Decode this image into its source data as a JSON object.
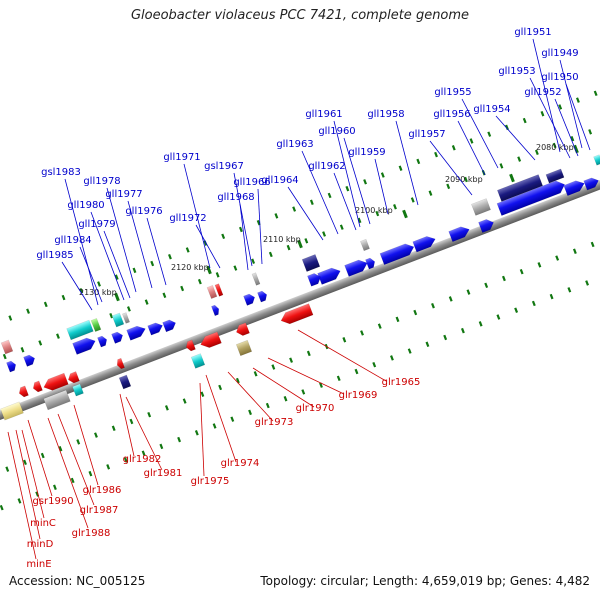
{
  "title": "Gloeobacter violaceus PCC 7421, complete genome",
  "accession": "Accession: NC_005125",
  "summary": "Topology: circular; Length: 4,659,019 bp; Genes: 4,482",
  "colors": {
    "forward_label": "#0000cc",
    "reverse_label": "#cc0000",
    "backbone": "#888888",
    "tick": "#117711"
  },
  "scale_labels": [
    "2080 kbp",
    "2090 kbp",
    "2100 kbp",
    "2110 kbp",
    "2120 kbp",
    "2130 kbp"
  ],
  "forward_genes": [
    "gll1949",
    "gll1950",
    "gll1951",
    "gll1952",
    "gll1953",
    "gll1954",
    "gll1955",
    "gll1956",
    "gll1957",
    "gll1958",
    "gll1959",
    "gll1960",
    "gll1961",
    "gll1962",
    "gll1963",
    "gll1964",
    "gll1966",
    "gsl1967",
    "gll1968",
    "gll1971",
    "gll1972",
    "gll1976",
    "gll1977",
    "gll1978",
    "gll1979",
    "gll1980",
    "gsl1983",
    "gll1984",
    "gll1985"
  ],
  "reverse_genes": [
    "glr1965",
    "glr1969",
    "glr1970",
    "glr1973",
    "glr1974",
    "glr1975",
    "glr1981",
    "glr1982",
    "gsr1990",
    "glr1986",
    "glr1987",
    "glr1988",
    "minC",
    "minD",
    "minE"
  ]
}
